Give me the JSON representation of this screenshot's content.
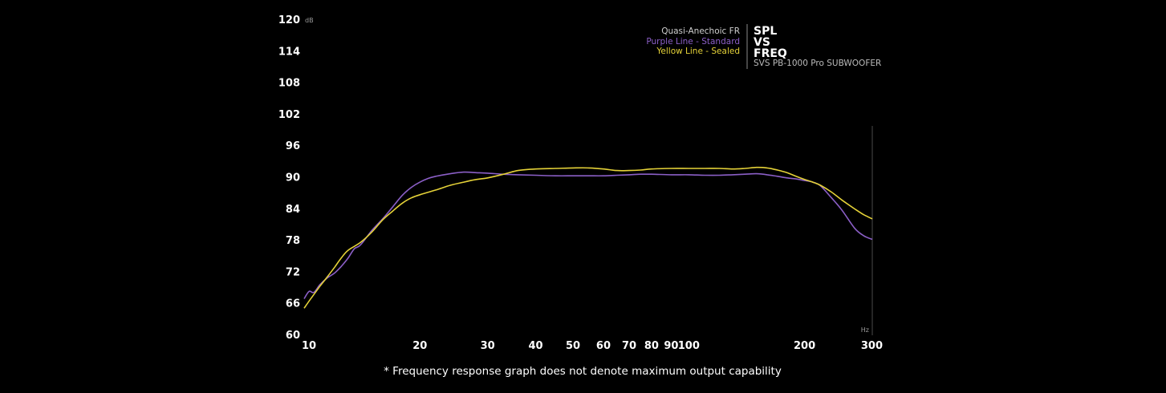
{
  "chart_data": {
    "type": "line",
    "x_scale": "log",
    "xlim": [
      10,
      300
    ],
    "ylim": [
      60,
      120
    ],
    "grid": false,
    "y_unit": "dB",
    "x_unit": "Hz",
    "y_ticks": [
      "120",
      "114",
      "108",
      "102",
      "96",
      "90",
      "84",
      "78",
      "72",
      "66",
      "60"
    ],
    "y_tick_values": [
      120,
      114,
      108,
      102,
      96,
      90,
      84,
      78,
      72,
      66,
      60
    ],
    "x_ticks": [
      "10",
      "20",
      "30",
      "40",
      "50",
      "60",
      "70",
      "80",
      "90",
      "100",
      "200",
      "300"
    ],
    "x_tick_values": [
      10,
      20,
      30,
      40,
      50,
      60,
      70,
      80,
      90,
      100,
      200,
      300
    ],
    "legend": {
      "heading": "Quasi-Anechoic FR",
      "items": [
        {
          "label": "Purple Line - Standard",
          "color": "#8b5fc7"
        },
        {
          "label": "Yellow Line - Sealed",
          "color": "#e5d238"
        }
      ],
      "title_lines": [
        "SPL",
        "VS",
        "FREQ"
      ],
      "product": "SVS PB-1000 Pro SUBWOOFER",
      "placement": "top-right"
    },
    "footnote": "* Frequency response graph does not denote maximum output capability",
    "series": [
      {
        "name": "Purple Line - Standard",
        "color": "#8b5fc7",
        "x": [
          10,
          10.3,
          10.6,
          11,
          11.5,
          12,
          12.5,
          13,
          13.5,
          14,
          15,
          16,
          17,
          18,
          19,
          20,
          21,
          22,
          24,
          26,
          28,
          30,
          33,
          36,
          40,
          45,
          50,
          55,
          60,
          65,
          70,
          75,
          80,
          90,
          100,
          110,
          120,
          130,
          140,
          150,
          160,
          170,
          180,
          190,
          200,
          210,
          220,
          235,
          250,
          270,
          285,
          300
        ],
        "y": [
          66.8,
          68.2,
          68.0,
          69.5,
          70.8,
          71.7,
          73.0,
          74.5,
          76.3,
          77.0,
          79.8,
          82.0,
          84.3,
          86.5,
          88.0,
          89.0,
          89.7,
          90.1,
          90.6,
          90.9,
          90.8,
          90.7,
          90.5,
          90.4,
          90.3,
          90.2,
          90.2,
          90.2,
          90.2,
          90.3,
          90.4,
          90.5,
          90.5,
          90.4,
          90.4,
          90.3,
          90.3,
          90.4,
          90.5,
          90.6,
          90.4,
          90.1,
          89.8,
          89.6,
          89.3,
          89.0,
          88.3,
          86.0,
          83.7,
          80.2,
          78.8,
          78.1
        ]
      },
      {
        "name": "Yellow Line - Sealed",
        "color": "#e5d238",
        "x": [
          10,
          10.5,
          11,
          11.5,
          12,
          12.5,
          13,
          14,
          15,
          16,
          17,
          18,
          19,
          20,
          22,
          24,
          26,
          28,
          30,
          33,
          36,
          40,
          45,
          50,
          55,
          60,
          65,
          70,
          75,
          80,
          90,
          100,
          110,
          120,
          130,
          140,
          150,
          160,
          170,
          180,
          190,
          200,
          210,
          220,
          235,
          250,
          270,
          285,
          300
        ],
        "y": [
          65.0,
          67.2,
          69.2,
          71.0,
          72.8,
          74.6,
          76.0,
          77.5,
          79.5,
          81.8,
          83.5,
          85.0,
          86.0,
          86.6,
          87.5,
          88.4,
          89.0,
          89.5,
          89.8,
          90.5,
          91.2,
          91.5,
          91.6,
          91.7,
          91.7,
          91.5,
          91.2,
          91.2,
          91.3,
          91.5,
          91.6,
          91.6,
          91.6,
          91.6,
          91.5,
          91.6,
          91.8,
          91.7,
          91.3,
          90.8,
          90.1,
          89.5,
          89.0,
          88.4,
          87.1,
          85.6,
          83.9,
          82.8,
          82.0
        ]
      }
    ]
  }
}
